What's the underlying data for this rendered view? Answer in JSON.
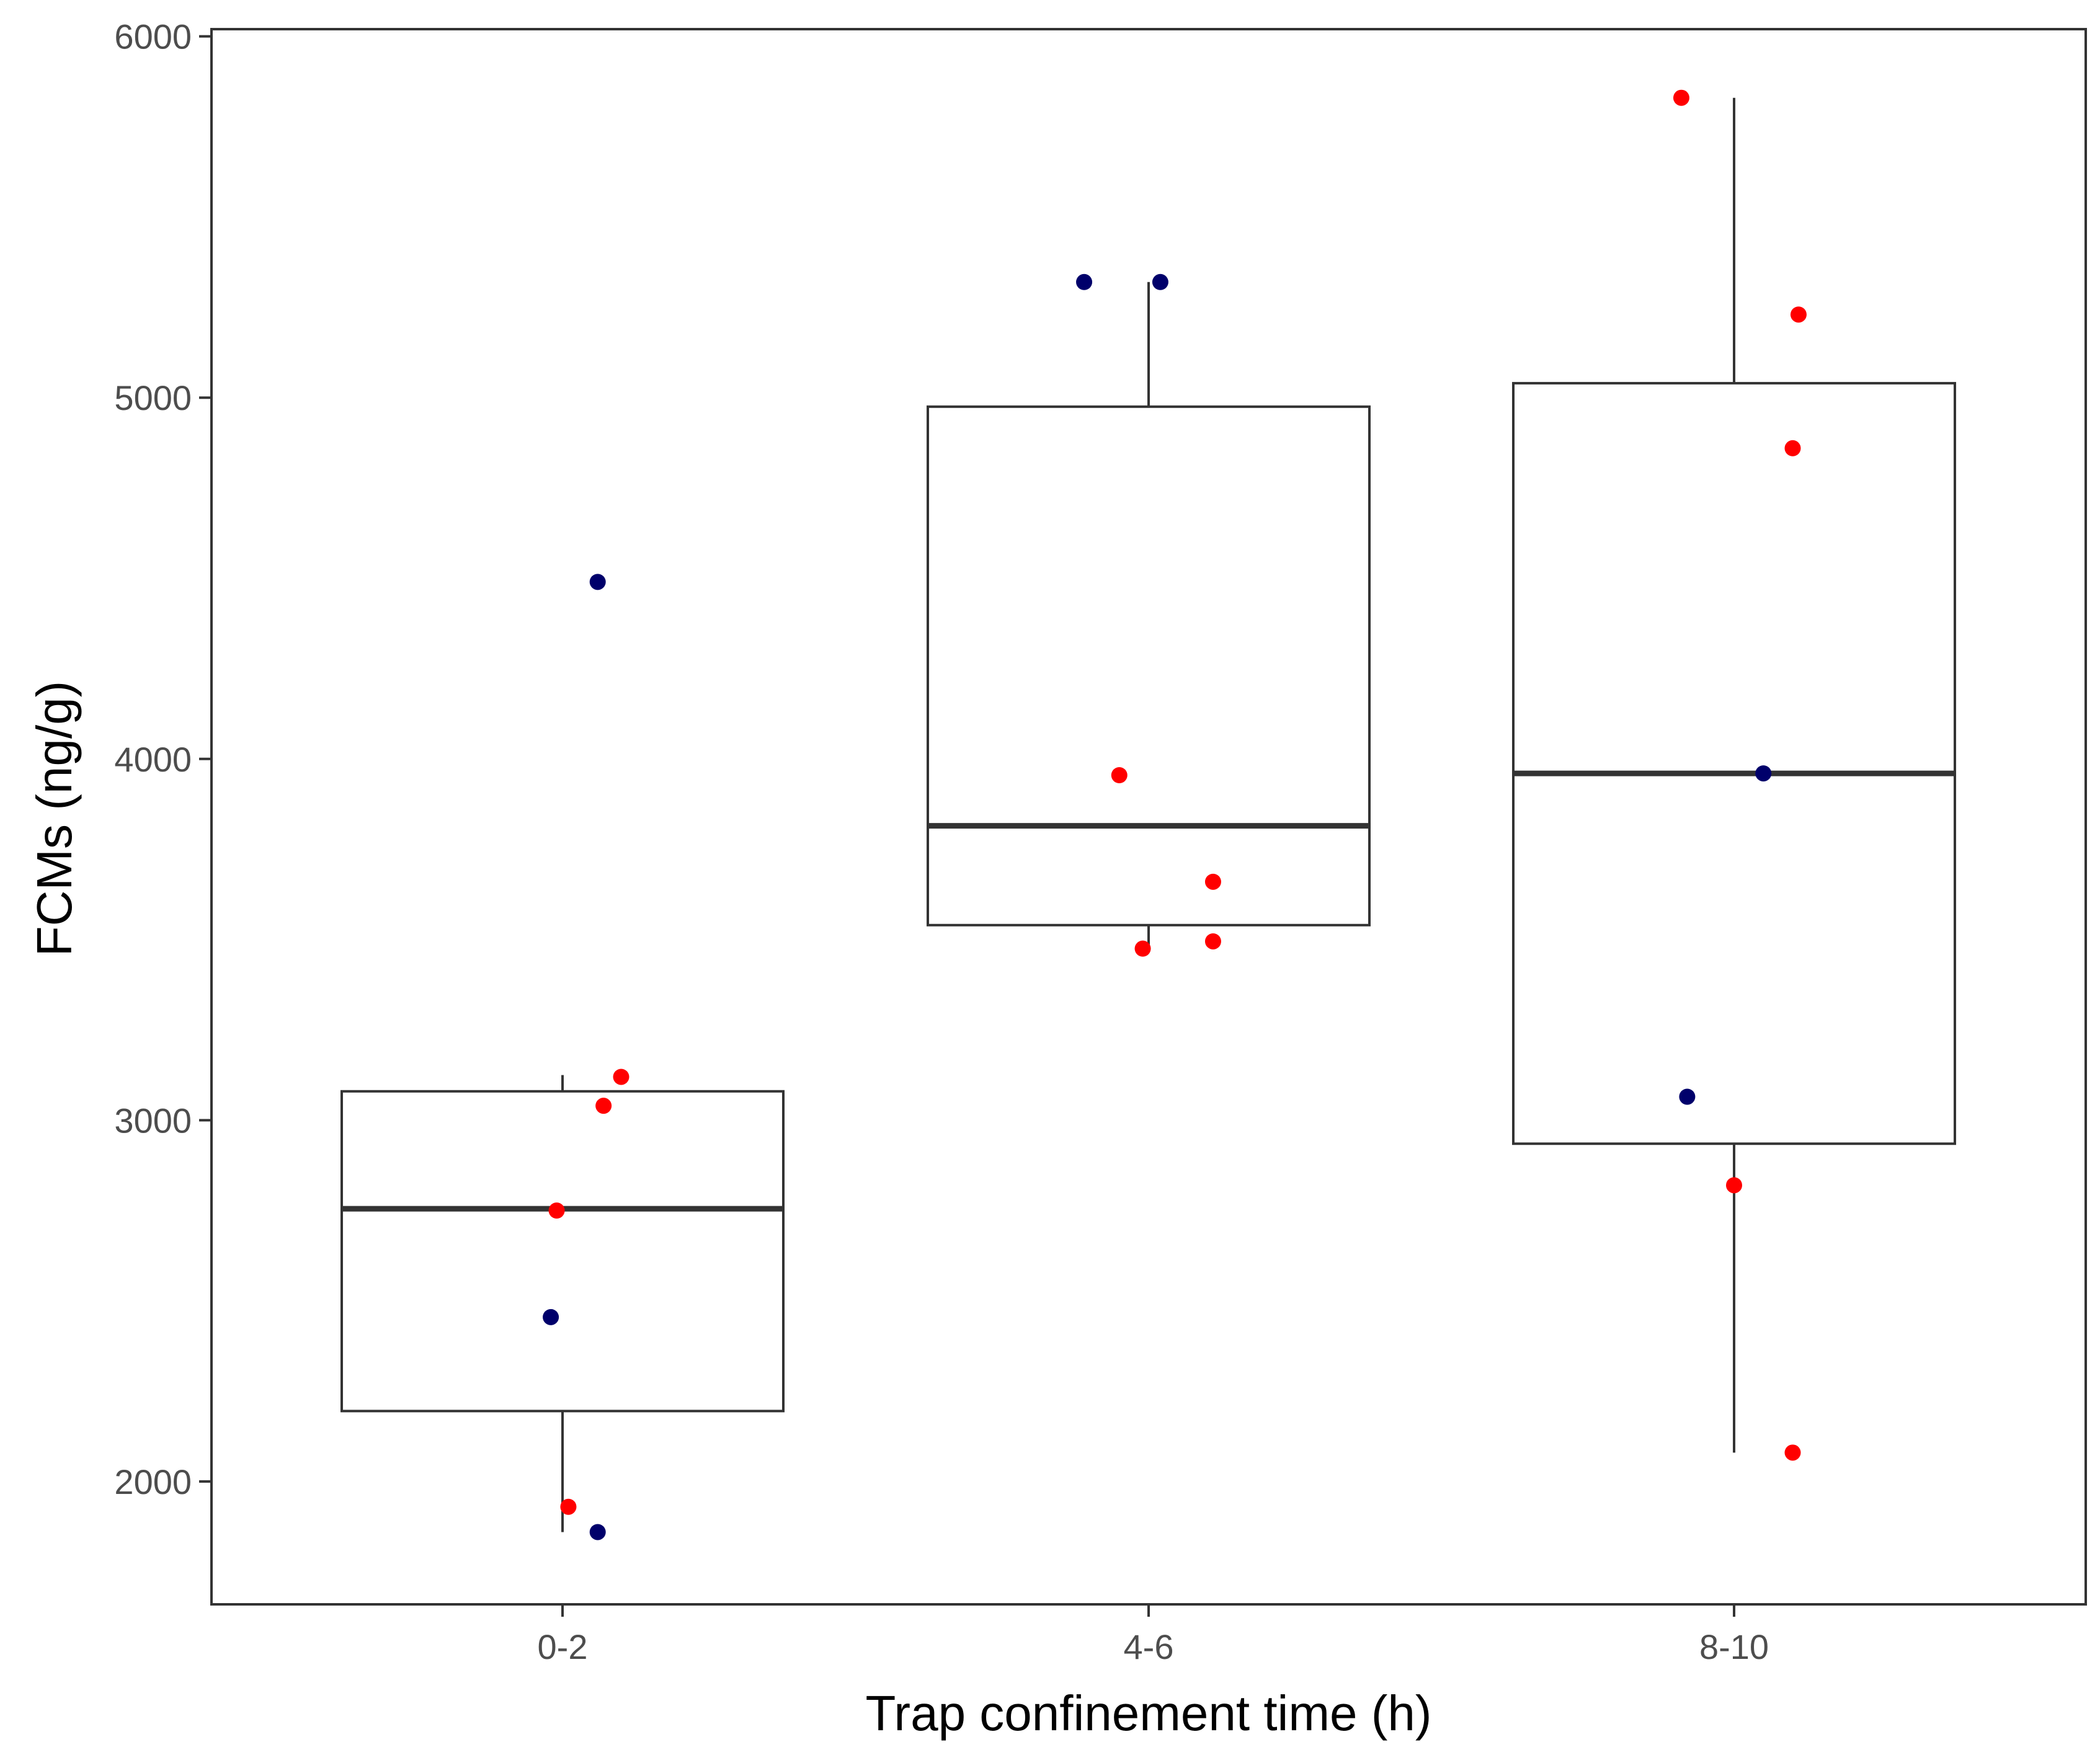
{
  "chart_data": {
    "type": "box",
    "title": "",
    "xlabel": "Trap confinement time (h)",
    "ylabel": "FCMs (ng/g)",
    "ylim": [
      1660,
      6020
    ],
    "yticks": [
      2000,
      3000,
      4000,
      5000,
      6000
    ],
    "grid": false,
    "legend": "none",
    "colors": {
      "red": "#ff0000",
      "navy": "#00006b",
      "outline": "#333333"
    },
    "categories": [
      "0-2",
      "4-6",
      "8-10"
    ],
    "boxes": [
      {
        "category": "0-2",
        "lower_whisker": 1860,
        "q1": 2195,
        "median": 2755,
        "q3": 3080,
        "upper_whisker": 3125
      },
      {
        "category": "4-6",
        "lower_whisker": 3470,
        "q1": 3540,
        "median": 3815,
        "q3": 4975,
        "upper_whisker": 5320
      },
      {
        "category": "8-10",
        "lower_whisker": 2080,
        "q1": 2935,
        "median": 3960,
        "q3": 5040,
        "upper_whisker": 5830
      }
    ],
    "points": [
      {
        "category": "0-2",
        "value": 4490,
        "color": "navy",
        "jitter": 0.06
      },
      {
        "category": "0-2",
        "value": 3120,
        "color": "red",
        "jitter": 0.1
      },
      {
        "category": "0-2",
        "value": 3040,
        "color": "red",
        "jitter": 0.07
      },
      {
        "category": "0-2",
        "value": 2750,
        "color": "red",
        "jitter": -0.01
      },
      {
        "category": "0-2",
        "value": 2455,
        "color": "navy",
        "jitter": -0.02
      },
      {
        "category": "0-2",
        "value": 1930,
        "color": "red",
        "jitter": 0.01
      },
      {
        "category": "0-2",
        "value": 1860,
        "color": "navy",
        "jitter": 0.06
      },
      {
        "category": "4-6",
        "value": 5320,
        "color": "navy",
        "jitter": -0.11
      },
      {
        "category": "4-6",
        "value": 5320,
        "color": "navy",
        "jitter": 0.02
      },
      {
        "category": "4-6",
        "value": 3955,
        "color": "red",
        "jitter": -0.05
      },
      {
        "category": "4-6",
        "value": 3660,
        "color": "red",
        "jitter": 0.11
      },
      {
        "category": "4-6",
        "value": 3495,
        "color": "red",
        "jitter": 0.11
      },
      {
        "category": "4-6",
        "value": 3475,
        "color": "red",
        "jitter": -0.01
      },
      {
        "category": "8-10",
        "value": 5830,
        "color": "red",
        "jitter": -0.09
      },
      {
        "category": "8-10",
        "value": 5230,
        "color": "red",
        "jitter": 0.11
      },
      {
        "category": "8-10",
        "value": 4860,
        "color": "red",
        "jitter": 0.1
      },
      {
        "category": "8-10",
        "value": 3960,
        "color": "navy",
        "jitter": 0.05
      },
      {
        "category": "8-10",
        "value": 3065,
        "color": "navy",
        "jitter": -0.08
      },
      {
        "category": "8-10",
        "value": 2820,
        "color": "red",
        "jitter": 0.0
      },
      {
        "category": "8-10",
        "value": 2080,
        "color": "red",
        "jitter": 0.1
      }
    ]
  }
}
